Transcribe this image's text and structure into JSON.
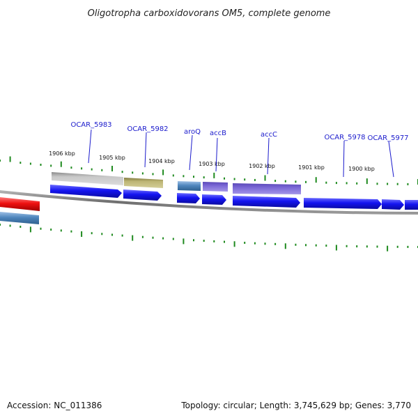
{
  "title": "Oligotropha carboxidovorans OM5, complete genome",
  "accession": "Accession: NC_011386",
  "summary": "Topology: circular; Length: 3,745,629 bp; Genes: 3,770",
  "colors": {
    "title": "#222222",
    "backbone": "#7a7a7a",
    "tick": "#1f8a1f",
    "cds": "#1414f0",
    "gene_label": "#1a1acc",
    "rna_red": "#ee1111",
    "steelblue": "#4f86bd",
    "gray": "#b8b8b8",
    "olive": "#b8b070",
    "purple": "#7b68d6"
  },
  "ticks": [
    "1906 kbp",
    "1905 kbp",
    "1904 kbp",
    "1903 kbp",
    "1902 kbp",
    "1901 kbp",
    "1900 kbp"
  ],
  "gene_labels": [
    "OCAR_5983",
    "OCAR_5982",
    "aroQ",
    "accB",
    "accC",
    "OCAR_5978",
    "OCAR_5977"
  ],
  "features": {
    "upper_track": [
      {
        "label": "OCAR_5983",
        "color": "gray"
      },
      {
        "label": "OCAR_5982",
        "color": "olive"
      },
      {
        "label": "aroQ",
        "color": "steelblue"
      },
      {
        "label": "accB",
        "color": "purple"
      },
      {
        "label": "accC",
        "color": "purple"
      }
    ],
    "cds_track": [
      "OCAR_5983",
      "OCAR_5982",
      "aroQ",
      "accB",
      "accC",
      "OCAR_5978",
      "OCAR_5977",
      "next"
    ],
    "left_features": [
      {
        "color": "rna_red"
      },
      {
        "color": "steelblue"
      }
    ]
  }
}
